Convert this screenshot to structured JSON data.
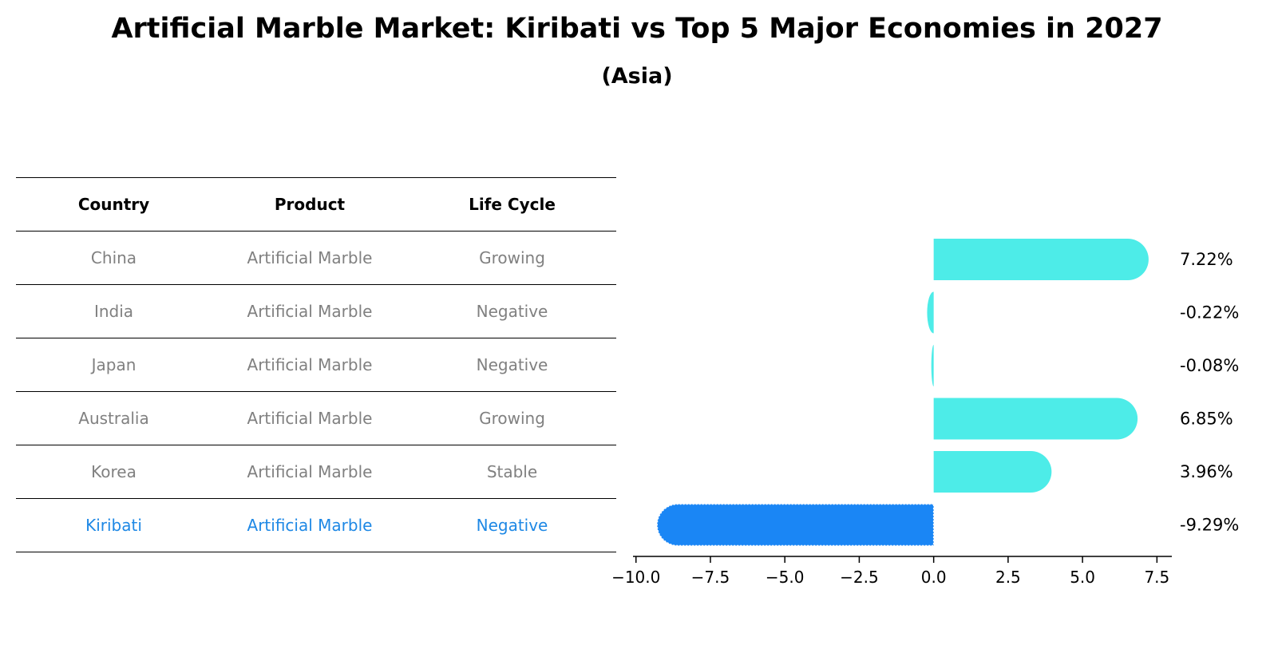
{
  "title": "Artificial Marble Market: Kiribati vs Top 5 Major Economies in 2027",
  "subtitle": "(Asia)",
  "table": {
    "headers": [
      "Country",
      "Product",
      "Life Cycle"
    ],
    "rows": [
      [
        "China",
        "Artificial Marble",
        "Growing"
      ],
      [
        "India",
        "Artificial Marble",
        "Negative"
      ],
      [
        "Japan",
        "Artificial Marble",
        "Negative"
      ],
      [
        "Australia",
        "Artificial Marble",
        "Growing"
      ],
      [
        "Korea",
        "Artificial Marble",
        "Stable"
      ],
      [
        "Kiribati",
        "Artificial Marble",
        "Negative"
      ]
    ],
    "highlight_row": 5
  },
  "chart_data": {
    "type": "bar",
    "orientation": "horizontal",
    "categories": [
      "China",
      "India",
      "Japan",
      "Australia",
      "Korea",
      "Kiribati"
    ],
    "values": [
      7.22,
      -0.22,
      -0.08,
      6.85,
      3.96,
      -9.29
    ],
    "value_labels": [
      "7.22%",
      "-0.22%",
      "-0.08%",
      "6.85%",
      "3.96%",
      "-9.29%"
    ],
    "xlim": [
      -10.1,
      8.0
    ],
    "xticks": [
      -10.0,
      -7.5,
      -5.0,
      -2.5,
      0.0,
      2.5,
      5.0,
      7.5
    ],
    "xtick_labels": [
      "−10.0",
      "−7.5",
      "−5.0",
      "−2.5",
      "0.0",
      "2.5",
      "5.0",
      "7.5"
    ],
    "highlight_index": 5,
    "colors": {
      "default": "#4dece8",
      "highlight": "#1a86f5"
    }
  }
}
